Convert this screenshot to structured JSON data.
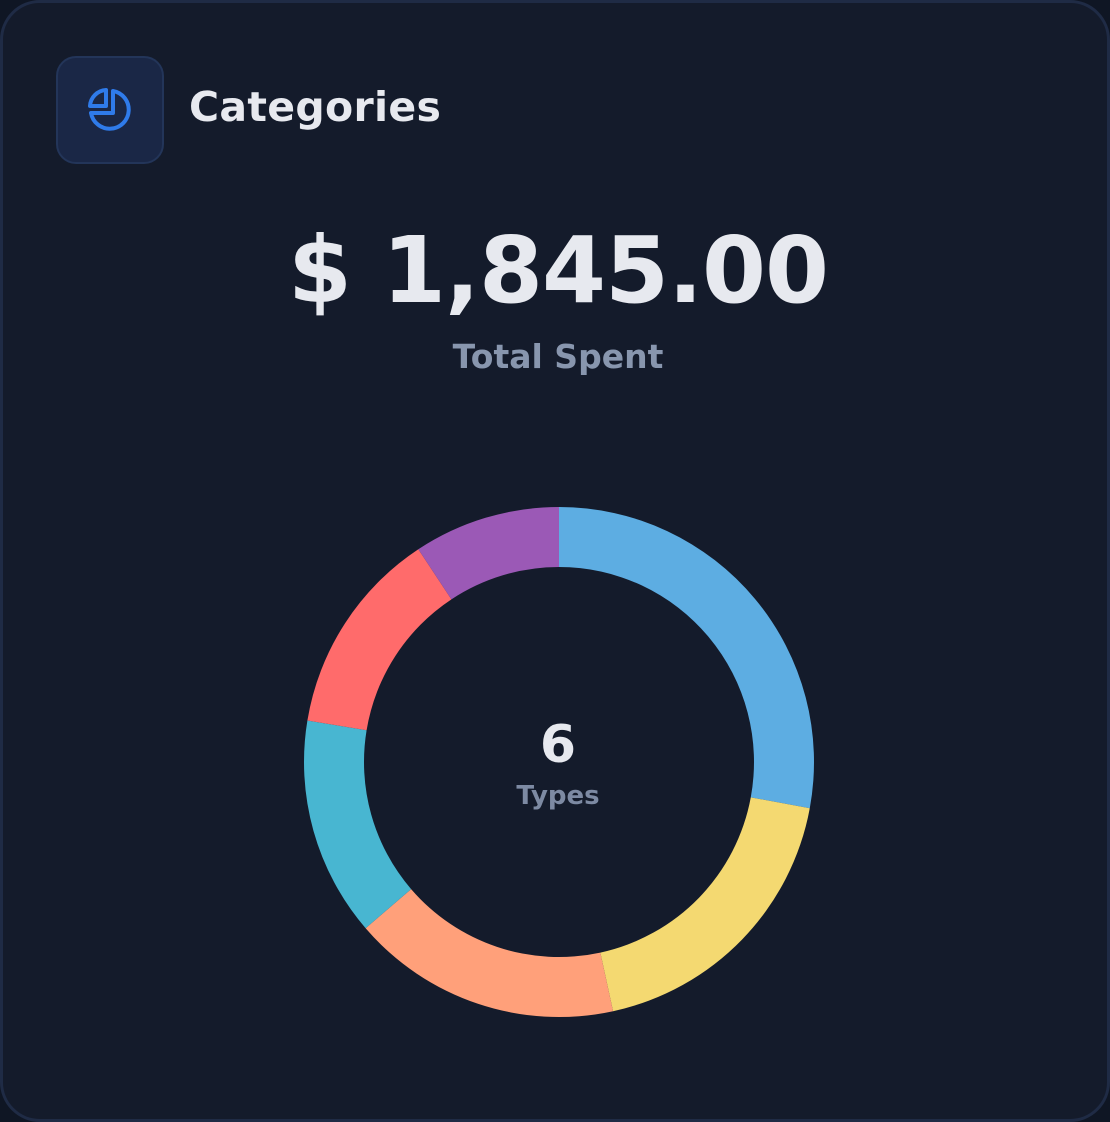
{
  "header": {
    "title": "Categories",
    "icon": "pie-chart-icon",
    "accent": "#2f7bea"
  },
  "summary": {
    "total_amount": "$ 1,845.00",
    "total_label": "Total Spent"
  },
  "donut_center": {
    "count": "6",
    "label": "Types"
  },
  "chart_data": {
    "type": "pie",
    "style": "donut",
    "series": [
      {
        "values": [
          27.9,
          18.7,
          17.1,
          13.9,
          13.1,
          9.3
        ],
        "colors": [
          "#5dade2",
          "#f4d971",
          "#ffa07a",
          "#48b6d1",
          "#ff6b6b",
          "#9b59b6"
        ]
      }
    ]
  }
}
